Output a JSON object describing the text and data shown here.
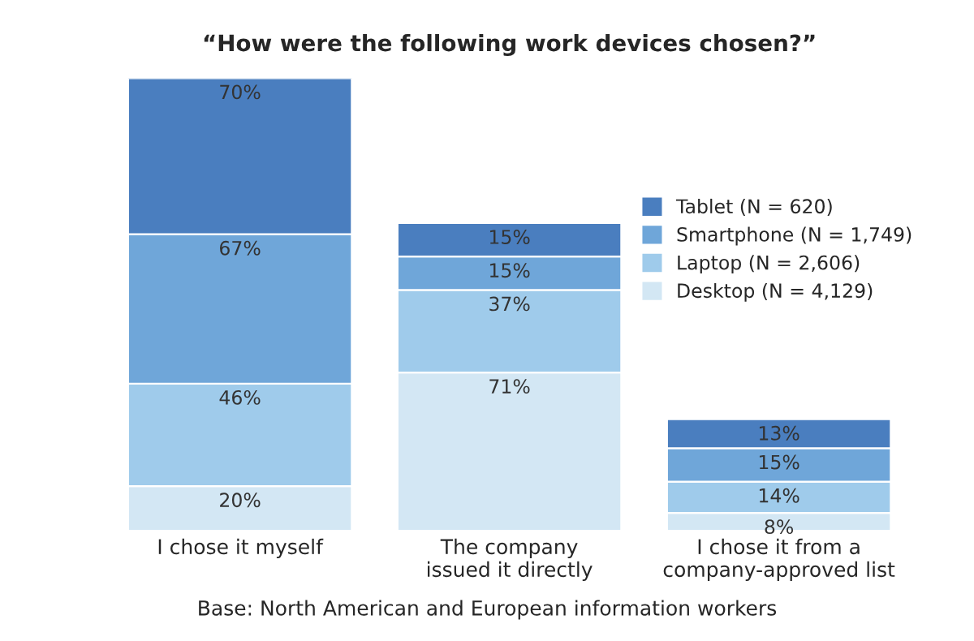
{
  "chart_data": {
    "type": "bar",
    "title": "“How were the following work devices chosen?”",
    "categories": [
      "I chose it myself",
      "The company\nissued it directly",
      "I chose it from a\ncompany-approved list"
    ],
    "stacked": true,
    "legend": "right",
    "series": [
      {
        "name": "Desktop (N = 4,129)",
        "color": "#d3e7f4",
        "values": [
          20,
          71,
          8
        ],
        "value_labels": [
          "20%",
          "71%",
          "8%"
        ]
      },
      {
        "name": "Laptop (N = 2,606)",
        "color": "#9fcbeb",
        "values": [
          46,
          37,
          14
        ],
        "value_labels": [
          "46%",
          "37%",
          "14%"
        ]
      },
      {
        "name": "Smartphone (N = 1,749)",
        "color": "#6fa6d9",
        "values": [
          67,
          15,
          15
        ],
        "value_labels": [
          "67%",
          "15%",
          "15%"
        ]
      },
      {
        "name": "Tablet (N = 620)",
        "color": "#4a7ebf",
        "values": [
          70,
          15,
          13
        ],
        "value_labels": [
          "70%",
          "15%",
          "13%"
        ]
      }
    ],
    "annotations": [
      "Base: North American and European information workers"
    ]
  }
}
